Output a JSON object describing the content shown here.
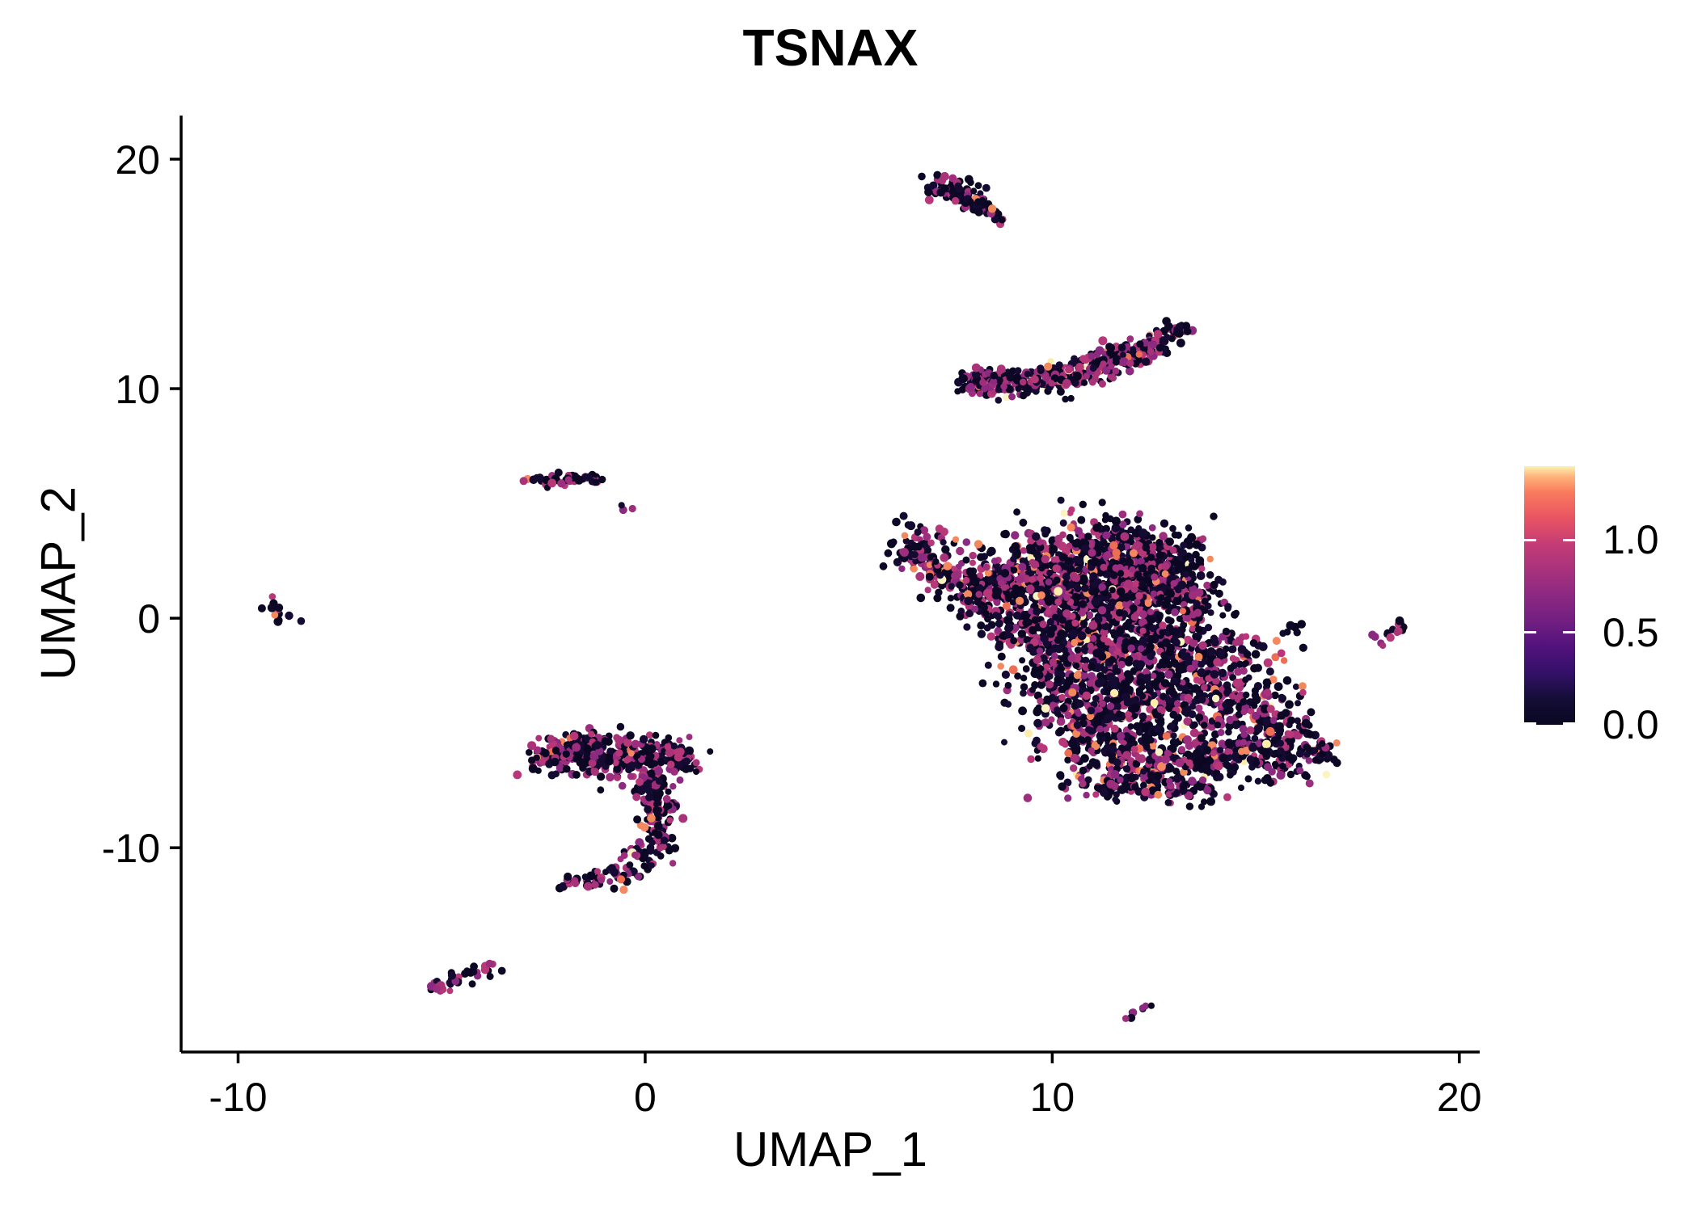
{
  "title": "TSNAX",
  "chart_data": {
    "type": "scatter",
    "title": "TSNAX",
    "xlabel": "UMAP_1",
    "ylabel": "UMAP_2",
    "xlim": [
      -11.4,
      20.5
    ],
    "ylim": [
      -18.9,
      21.9
    ],
    "x_ticks": [
      -10,
      0,
      10,
      20
    ],
    "y_ticks": [
      -10,
      0,
      10,
      20
    ],
    "grid": false,
    "legend_position": "right",
    "colorbar": {
      "title": "",
      "colormap": "magma",
      "value_range": [
        0.0,
        1.4
      ],
      "ticks": [
        {
          "value": 1.0,
          "label": "1.0"
        },
        {
          "value": 0.5,
          "label": "0.5"
        },
        {
          "value": 0.0,
          "label": "0.0"
        }
      ]
    },
    "point_radius_px": [
      4.0,
      5.5
    ],
    "seed": 20240607,
    "palette": {
      "zero": [
        "#0b0622",
        "#0d0826",
        "#140a32"
      ],
      "mid": [
        "#8c2981",
        "#9d2e7e",
        "#a93378",
        "#b73779"
      ],
      "high": [
        "#ee6e54",
        "#f58860",
        "#f08a5c"
      ],
      "top": [
        "#fdedaa",
        "#fcf3c3"
      ]
    },
    "points_encoding": "gaussian_blobs: each blob is [x_center, y_center, sd_x, sd_y, n_points] in UMAP data units; color_weights give fraction of points drawn from each palette expression bin (zero=no expression/black, mid~0.5-0.7, high~1.0, top~1.3)",
    "clusters": [
      {
        "name": "top-streak",
        "color_weights": {
          "zero": 0.7,
          "mid": 0.28,
          "high": 0.02,
          "top": 0.0
        },
        "blobs": [
          [
            7.35,
            18.9,
            0.28,
            0.22,
            30
          ],
          [
            7.75,
            18.55,
            0.3,
            0.25,
            40
          ],
          [
            8.1,
            18.1,
            0.22,
            0.18,
            20
          ],
          [
            8.45,
            17.75,
            0.15,
            0.12,
            12
          ],
          [
            8.75,
            17.35,
            0.1,
            0.1,
            6
          ]
        ]
      },
      {
        "name": "crescent",
        "color_weights": {
          "zero": 0.52,
          "mid": 0.42,
          "high": 0.05,
          "top": 0.01
        },
        "blobs": [
          [
            8.15,
            10.3,
            0.25,
            0.25,
            40
          ],
          [
            8.7,
            10.3,
            0.35,
            0.28,
            70
          ],
          [
            9.4,
            10.35,
            0.4,
            0.3,
            80
          ],
          [
            10.2,
            10.5,
            0.4,
            0.3,
            80
          ],
          [
            11.0,
            10.9,
            0.35,
            0.3,
            70
          ],
          [
            11.8,
            11.4,
            0.3,
            0.28,
            60
          ],
          [
            12.5,
            11.9,
            0.25,
            0.25,
            45
          ],
          [
            13.05,
            12.5,
            0.16,
            0.2,
            22
          ]
        ]
      },
      {
        "name": "small-mid-left",
        "color_weights": {
          "zero": 0.52,
          "mid": 0.45,
          "high": 0.03,
          "top": 0.0
        },
        "blobs": [
          [
            -2.3,
            5.95,
            0.3,
            0.14,
            22
          ],
          [
            -1.7,
            6.05,
            0.28,
            0.13,
            20
          ],
          [
            -1.25,
            6.0,
            0.12,
            0.1,
            6
          ],
          [
            -0.45,
            4.75,
            0.2,
            0.12,
            3
          ]
        ]
      },
      {
        "name": "far-left-dot",
        "color_weights": {
          "zero": 0.5,
          "mid": 0.46,
          "high": 0.04,
          "top": 0.0
        },
        "blobs": [
          [
            -9.05,
            0.3,
            0.2,
            0.3,
            13
          ]
        ]
      },
      {
        "name": "hook-left",
        "color_weights": {
          "zero": 0.55,
          "mid": 0.42,
          "high": 0.027,
          "top": 0.003
        },
        "blobs": [
          [
            -2.2,
            -5.9,
            0.35,
            0.4,
            70
          ],
          [
            -1.5,
            -5.85,
            0.4,
            0.45,
            90
          ],
          [
            -0.7,
            -5.9,
            0.4,
            0.45,
            90
          ],
          [
            0.2,
            -6.0,
            0.4,
            0.45,
            80
          ],
          [
            0.8,
            -6.15,
            0.25,
            0.35,
            40
          ],
          [
            -0.3,
            -6.9,
            0.5,
            0.4,
            15
          ],
          [
            0.15,
            -7.4,
            0.28,
            0.4,
            45
          ],
          [
            0.35,
            -8.4,
            0.25,
            0.4,
            40
          ],
          [
            0.3,
            -9.4,
            0.22,
            0.35,
            30
          ],
          [
            0.0,
            -10.35,
            0.25,
            0.3,
            30
          ],
          [
            -0.6,
            -11.1,
            0.3,
            0.22,
            25
          ],
          [
            -1.3,
            -11.45,
            0.28,
            0.18,
            20
          ],
          [
            -1.85,
            -11.5,
            0.14,
            0.12,
            8
          ]
        ]
      },
      {
        "name": "bottom-left-streak",
        "color_weights": {
          "zero": 0.5,
          "mid": 0.44,
          "high": 0.06,
          "top": 0.0
        },
        "blobs": [
          [
            -5.1,
            -16.1,
            0.18,
            0.15,
            12
          ],
          [
            -4.6,
            -15.8,
            0.25,
            0.18,
            14
          ],
          [
            -4.1,
            -15.45,
            0.2,
            0.15,
            10
          ],
          [
            -3.85,
            -15.15,
            0.1,
            0.1,
            4
          ]
        ]
      },
      {
        "name": "main-body",
        "color_weights": {
          "zero": 0.615,
          "mid": 0.335,
          "high": 0.042,
          "top": 0.008
        },
        "blobs": [
          [
            6.5,
            3.0,
            0.3,
            0.3,
            30
          ],
          [
            7.0,
            2.5,
            0.35,
            0.35,
            45
          ],
          [
            7.6,
            1.9,
            0.4,
            0.4,
            60
          ],
          [
            8.3,
            1.2,
            0.45,
            0.45,
            70
          ],
          [
            6.6,
            4.0,
            0.4,
            0.3,
            8
          ],
          [
            7.3,
            3.4,
            0.55,
            0.35,
            15
          ],
          [
            9.3,
            1.5,
            0.7,
            0.9,
            160
          ],
          [
            10.3,
            2.3,
            0.8,
            0.9,
            200
          ],
          [
            11.3,
            2.8,
            0.8,
            0.8,
            200
          ],
          [
            12.3,
            2.5,
            0.7,
            0.8,
            170
          ],
          [
            13.0,
            1.8,
            0.6,
            0.7,
            120
          ],
          [
            10.8,
            1.0,
            0.9,
            0.8,
            200
          ],
          [
            12.0,
            0.8,
            0.8,
            0.8,
            180
          ],
          [
            13.3,
            0.3,
            0.6,
            0.6,
            100
          ],
          [
            9.7,
            -0.5,
            0.7,
            0.7,
            150
          ],
          [
            11.0,
            -1.2,
            0.8,
            0.7,
            170
          ],
          [
            12.3,
            -1.5,
            0.8,
            0.7,
            160
          ],
          [
            13.6,
            -1.5,
            0.6,
            0.6,
            90
          ],
          [
            10.3,
            -3.0,
            0.7,
            0.8,
            150
          ],
          [
            11.6,
            -3.5,
            0.8,
            0.8,
            170
          ],
          [
            12.9,
            -3.8,
            0.8,
            0.8,
            160
          ],
          [
            14.2,
            -3.5,
            0.6,
            0.6,
            80
          ],
          [
            10.8,
            -5.5,
            0.6,
            0.7,
            110
          ],
          [
            12.0,
            -6.0,
            0.7,
            0.7,
            130
          ],
          [
            13.3,
            -6.2,
            0.7,
            0.6,
            120
          ],
          [
            14.6,
            -6.0,
            0.6,
            0.5,
            90
          ],
          [
            15.6,
            -6.3,
            0.5,
            0.4,
            60
          ],
          [
            15.0,
            -4.5,
            0.5,
            0.6,
            70
          ],
          [
            16.0,
            -5.2,
            0.4,
            0.5,
            50
          ],
          [
            16.6,
            -5.8,
            0.22,
            0.3,
            18
          ],
          [
            14.8,
            -1.8,
            0.7,
            0.7,
            40
          ],
          [
            15.8,
            -3.2,
            0.5,
            0.5,
            25
          ],
          [
            11.5,
            -7.3,
            0.8,
            0.35,
            60
          ],
          [
            13.0,
            -7.5,
            0.6,
            0.3,
            40
          ],
          [
            15.9,
            -0.5,
            0.22,
            0.18,
            5
          ]
        ]
      },
      {
        "name": "right-small",
        "color_weights": {
          "zero": 0.45,
          "mid": 0.5,
          "high": 0.05,
          "top": 0.0
        },
        "blobs": [
          [
            18.1,
            -0.9,
            0.14,
            0.22,
            7
          ],
          [
            18.45,
            -0.35,
            0.14,
            0.22,
            8
          ]
        ]
      },
      {
        "name": "bottom-tiny",
        "color_weights": {
          "zero": 0.5,
          "mid": 0.5,
          "high": 0.0,
          "top": 0.0
        },
        "blobs": [
          [
            12.0,
            -17.3,
            0.12,
            0.14,
            4
          ],
          [
            12.3,
            -16.95,
            0.12,
            0.14,
            4
          ]
        ]
      }
    ]
  }
}
